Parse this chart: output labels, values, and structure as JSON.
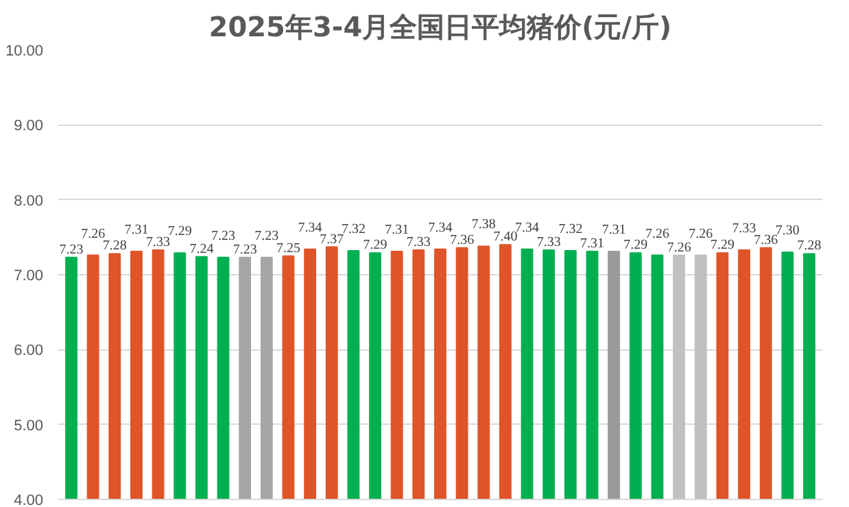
{
  "chart_data": {
    "type": "bar",
    "title": "2025年3-4月全国日平均猪价(元/斤)",
    "categories": [
      null,
      null,
      null,
      null,
      null,
      null,
      null,
      null,
      null,
      null,
      null,
      null,
      null,
      null,
      null,
      null,
      null,
      null,
      null,
      null,
      null,
      null,
      null,
      null,
      null,
      null,
      null,
      null,
      null,
      null,
      null,
      null,
      null,
      null,
      null
    ],
    "values": [
      7.23,
      7.26,
      7.28,
      7.31,
      7.33,
      7.29,
      7.24,
      7.23,
      7.23,
      7.23,
      7.25,
      7.34,
      7.37,
      7.32,
      7.29,
      7.31,
      7.33,
      7.34,
      7.36,
      7.38,
      7.4,
      7.34,
      7.33,
      7.32,
      7.31,
      7.31,
      7.29,
      7.26,
      7.26,
      7.26,
      7.29,
      7.33,
      7.36,
      7.3,
      7.28
    ],
    "value_labels": [
      "7.23",
      "7.26",
      "7.28",
      "7.31",
      "7.33",
      "7.29",
      "7.24",
      "7.23",
      "7.23",
      "7.23",
      "7.25",
      "7.34",
      "7.37",
      "7.32",
      "7.29",
      "7.31",
      "7.33",
      "7.34",
      "7.36",
      "7.38",
      "7.40",
      "7.34",
      "7.33",
      "7.32",
      "7.31",
      "7.31",
      "7.29",
      "7.26",
      "7.26",
      "7.26",
      "7.29",
      "7.33",
      "7.36",
      "7.30",
      "7.28"
    ],
    "colors": [
      "#00b050",
      "#e0542a",
      "#e0542a",
      "#e0542a",
      "#e0542a",
      "#00b050",
      "#00b050",
      "#00b050",
      "#a6a6a6",
      "#a6a6a6",
      "#e0542a",
      "#e0542a",
      "#e0542a",
      "#00b050",
      "#00b050",
      "#e0542a",
      "#e0542a",
      "#e0542a",
      "#e0542a",
      "#e0542a",
      "#e0542a",
      "#00b050",
      "#00b050",
      "#00b050",
      "#00b050",
      "#9a9a9a",
      "#00b050",
      "#00b050",
      "#c0c0c0",
      "#c0c0c0",
      "#e0542a",
      "#e0542a",
      "#e0542a",
      "#00b050",
      "#00b050"
    ],
    "ylim": [
      4,
      10
    ],
    "yticks": [
      {
        "value": 4,
        "label": "4.00"
      },
      {
        "value": 5,
        "label": "5.00"
      },
      {
        "value": 6,
        "label": "6.00"
      },
      {
        "value": 7,
        "label": "7.00"
      },
      {
        "value": 8,
        "label": "8.00"
      },
      {
        "value": 9,
        "label": "9.00"
      },
      {
        "value": 10,
        "label": "10.00"
      }
    ],
    "grid": "y"
  }
}
